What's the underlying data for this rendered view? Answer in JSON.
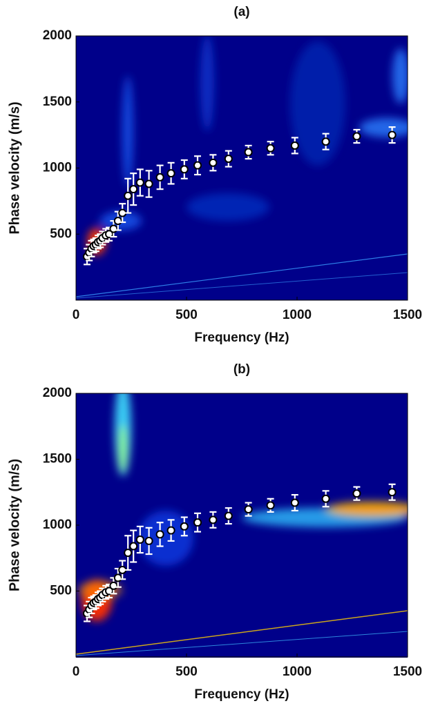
{
  "chart_data": [
    {
      "type": "scatter",
      "title": "(a)",
      "xlabel": "Frequency (Hz)",
      "ylabel": "Phase velocity (m/s)",
      "color": "#ffffff",
      "x": [
        50,
        60,
        70,
        80,
        90,
        100,
        110,
        120,
        135,
        150,
        170,
        190,
        210,
        235,
        260,
        290,
        330,
        380,
        430,
        490,
        550,
        620,
        690,
        780,
        880,
        990,
        1130,
        1270,
        1430
      ],
      "values": [
        330,
        360,
        390,
        410,
        420,
        440,
        450,
        470,
        490,
        500,
        540,
        600,
        660,
        790,
        840,
        890,
        880,
        930,
        960,
        990,
        1020,
        1040,
        1070,
        1120,
        1150,
        1170,
        1200,
        1240,
        1250
      ],
      "errors": [
        60,
        60,
        60,
        50,
        50,
        50,
        50,
        50,
        50,
        50,
        60,
        70,
        70,
        130,
        120,
        100,
        100,
        90,
        80,
        70,
        70,
        60,
        60,
        50,
        50,
        60,
        60,
        50,
        60
      ],
      "xlim": [
        0,
        1500
      ],
      "ylim": [
        0,
        2000
      ],
      "xticks": [
        0,
        500,
        1000,
        1500
      ],
      "yticks": [
        500,
        1000,
        1500,
        2000
      ]
    },
    {
      "type": "scatter",
      "title": "(b)",
      "xlabel": "Frequency (Hz)",
      "ylabel": "Phase velocity (m/s)",
      "color": "#ffffff",
      "x": [
        50,
        60,
        70,
        80,
        90,
        100,
        110,
        120,
        135,
        150,
        170,
        190,
        210,
        235,
        260,
        290,
        330,
        380,
        430,
        490,
        550,
        620,
        690,
        780,
        880,
        990,
        1130,
        1270,
        1430
      ],
      "values": [
        330,
        360,
        390,
        410,
        420,
        440,
        450,
        470,
        490,
        500,
        540,
        600,
        660,
        790,
        840,
        890,
        880,
        930,
        960,
        990,
        1020,
        1040,
        1070,
        1120,
        1150,
        1170,
        1200,
        1240,
        1250
      ],
      "errors": [
        60,
        60,
        60,
        50,
        50,
        50,
        50,
        50,
        50,
        50,
        60,
        70,
        70,
        130,
        120,
        100,
        100,
        90,
        80,
        70,
        70,
        60,
        60,
        50,
        50,
        60,
        60,
        50,
        60
      ],
      "xlim": [
        0,
        1500
      ],
      "ylim": [
        0,
        2000
      ],
      "xticks": [
        0,
        500,
        1000,
        1500
      ],
      "yticks": [
        500,
        1000,
        1500,
        2000
      ]
    }
  ]
}
